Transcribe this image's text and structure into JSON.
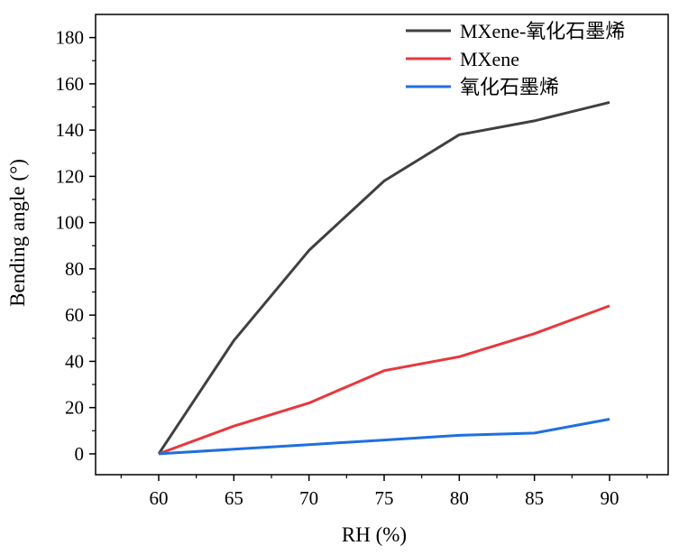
{
  "chart_data": {
    "type": "line",
    "title": "",
    "xlabel": "RH (%)",
    "ylabel": "Bending angle (°)",
    "x": [
      60,
      65,
      70,
      75,
      80,
      85,
      90
    ],
    "xticks": [
      "60",
      "65",
      "70",
      "75",
      "80",
      "85",
      "90"
    ],
    "yticks": [
      "0",
      "20",
      "40",
      "60",
      "80",
      "100",
      "120",
      "140",
      "160",
      "180"
    ],
    "xlim": [
      55.8,
      93.9
    ],
    "ylim": [
      -9,
      190
    ],
    "grid": false,
    "legend_position": "top-right",
    "series": [
      {
        "name": "MXene-氧化石墨烯",
        "color": "#404040",
        "values": [
          0,
          49,
          88,
          118,
          138,
          144,
          152
        ]
      },
      {
        "name": "MXene",
        "color": "#e8373c",
        "values": [
          0,
          12,
          22,
          36,
          42,
          52,
          64
        ]
      },
      {
        "name": "氧化石墨烯",
        "color": "#1f6fe0",
        "values": [
          0,
          2,
          4,
          6,
          8,
          9,
          15
        ]
      }
    ]
  }
}
